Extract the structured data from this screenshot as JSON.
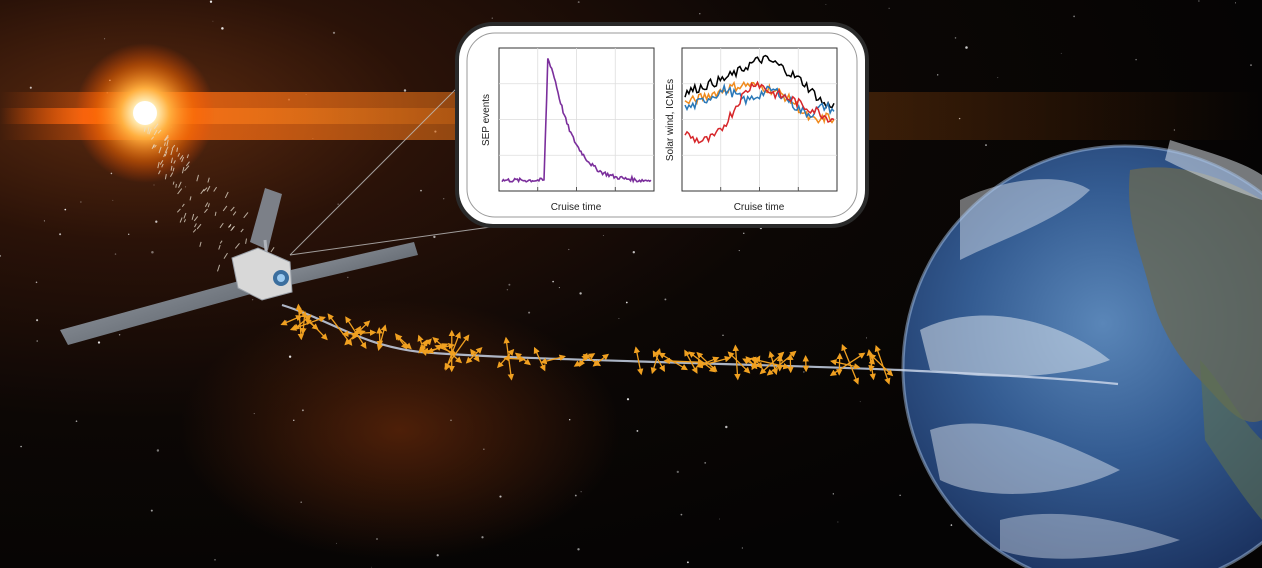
{
  "inset": {
    "left_panel": {
      "ylabel": "SEP events",
      "xlabel": "Cruise time"
    },
    "right_panel": {
      "ylabel": "Solar wind, ICMEs",
      "xlabel": "Cruise time"
    }
  },
  "icons": {
    "sun": "sun-icon",
    "spacecraft": "spacecraft-icon",
    "earth": "earth-icon"
  },
  "colors": {
    "background": "#0a0604",
    "sun_glow": "#ff7a10",
    "field_vectors": "#f0a020",
    "sep_curve": "#7b2f9c",
    "solar_wind_black": "#000000",
    "solar_wind_orange": "#f08a1c",
    "solar_wind_blue": "#2a78b8",
    "solar_wind_red": "#d6262a"
  },
  "chart_data": [
    {
      "type": "line",
      "xlabel": "Cruise time",
      "ylabel": "SEP events",
      "series": [
        {
          "values": [
            0.05,
            0.05,
            0.05,
            0.05,
            0.05,
            0.05,
            0.05,
            0.05,
            0.05,
            0.05,
            0.05,
            0.05,
            0.95,
            0.88,
            0.78,
            0.66,
            0.56,
            0.47,
            0.4,
            0.34,
            0.29,
            0.25,
            0.21,
            0.18,
            0.15,
            0.13,
            0.11,
            0.1,
            0.09,
            0.08,
            0.07,
            0.07,
            0.06,
            0.06,
            0.06,
            0.05,
            0.05,
            0.05,
            0.05,
            0.05
          ]
        }
      ]
    },
    {
      "type": "line",
      "xlabel": "Cruise time",
      "ylabel": "Solar wind, ICMEs",
      "series": [
        {
          "values": [
            0.7,
            0.72,
            0.74,
            0.76,
            0.78,
            0.8,
            0.83,
            0.86,
            0.9,
            0.93,
            0.95,
            0.93,
            0.9,
            0.86,
            0.82,
            0.78,
            0.72,
            0.66,
            0.6,
            0.62
          ]
        },
        {
          "values": [
            0.62,
            0.64,
            0.66,
            0.68,
            0.7,
            0.72,
            0.74,
            0.75,
            0.76,
            0.75,
            0.74,
            0.72,
            0.7,
            0.66,
            0.62,
            0.55,
            0.5,
            0.48,
            0.52,
            0.5
          ]
        },
        {
          "values": [
            0.58,
            0.6,
            0.63,
            0.66,
            0.69,
            0.72,
            0.7,
            0.66,
            0.64,
            0.67,
            0.7,
            0.72,
            0.7,
            0.66,
            0.6,
            0.56,
            0.54,
            0.58,
            0.6,
            0.56
          ]
        },
        {
          "values": [
            0.4,
            0.36,
            0.34,
            0.35,
            0.38,
            0.46,
            0.55,
            0.65,
            0.72,
            0.78,
            0.74,
            0.7,
            0.68,
            0.66,
            0.64,
            0.6,
            0.58,
            0.56,
            0.52,
            0.5
          ]
        }
      ]
    }
  ]
}
